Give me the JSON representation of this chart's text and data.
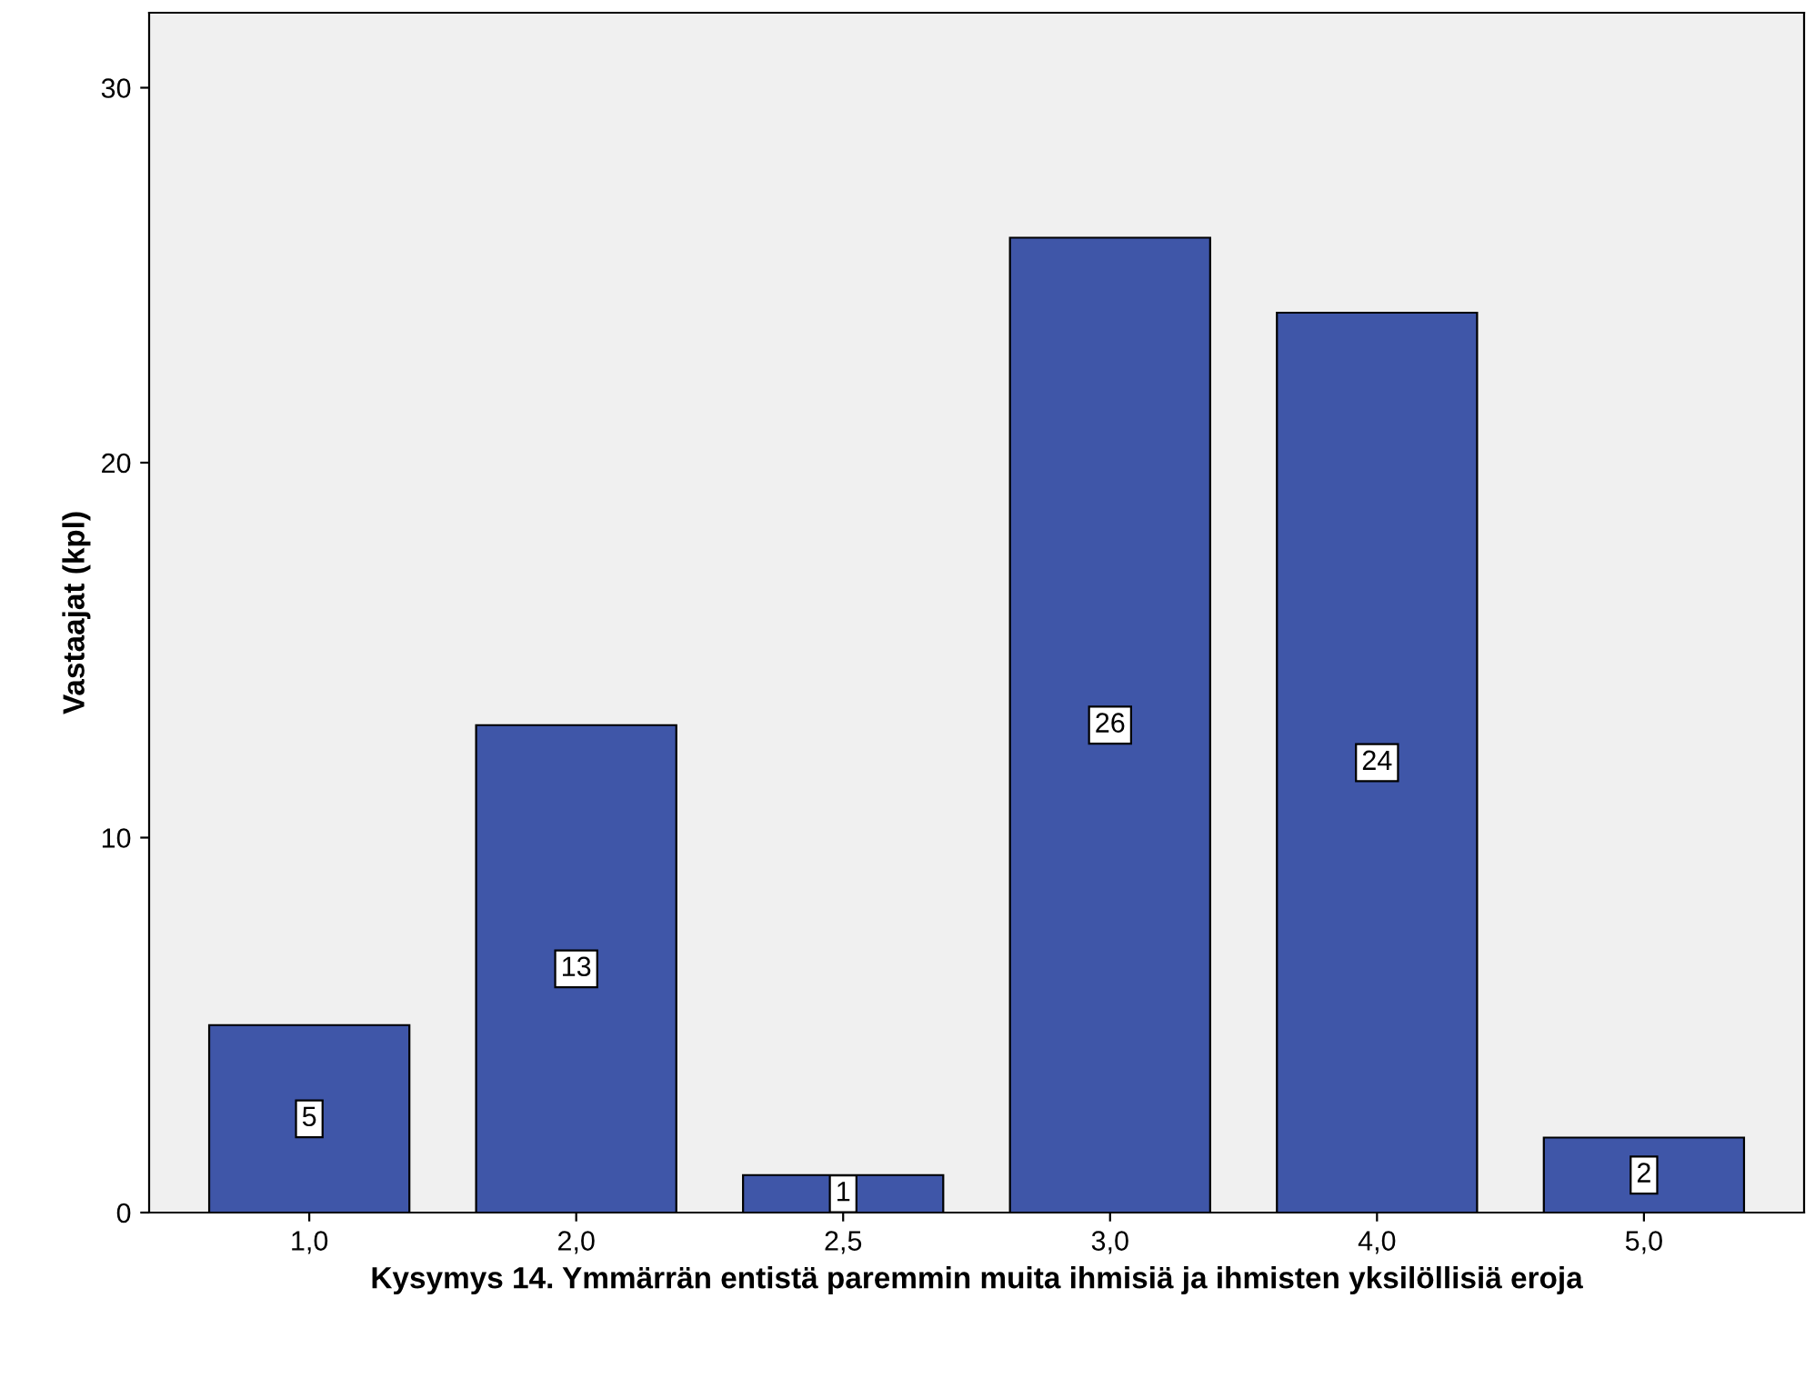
{
  "chart_data": {
    "type": "bar",
    "categories": [
      "1,0",
      "2,0",
      "2,5",
      "3,0",
      "4,0",
      "5,0"
    ],
    "values": [
      5,
      13,
      1,
      26,
      24,
      2
    ],
    "color": "#3f56a8",
    "xlabel": "Kysymys 14. Ymmärrän entistä paremmin muita ihmisiä ja ihmisten yksilöllisiä eroja",
    "ylabel": "Vastaajat (kpl)",
    "ylim": [
      0,
      32
    ],
    "yticks": [
      0,
      10,
      20,
      30
    ],
    "data_labels": true,
    "grid": false,
    "legend": false
  }
}
